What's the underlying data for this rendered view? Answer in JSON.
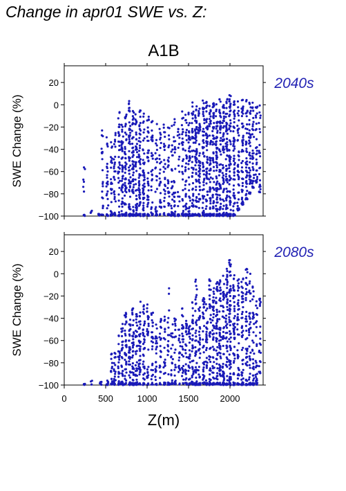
{
  "page": {
    "title": "Change in apr01 SWE vs. Z:"
  },
  "colors": {
    "points": "#1a1ab8",
    "period_label": "#2323b4",
    "axis": "#000000"
  },
  "chart_data": {
    "type": "scatter",
    "title": "A1B",
    "xlabel": "Z(m)",
    "ylabel": "SWE Change (%)",
    "xlim": [
      0,
      2400
    ],
    "ylim": [
      -100,
      35
    ],
    "x_ticks": [
      0,
      500,
      1000,
      1500,
      2000
    ],
    "x_tick_labels": [
      "0",
      "500",
      "1000",
      "1500",
      "2000"
    ],
    "y_ticks": [
      20,
      0,
      -20,
      -40,
      -60,
      -80,
      -100
    ],
    "y_tick_labels": [
      "20",
      "0",
      "−20",
      "−40",
      "−60",
      "−80",
      "−100"
    ],
    "grid": false,
    "panels": [
      {
        "period": "2040s",
        "clusters": [
          {
            "x": 240,
            "ymin": -100,
            "ymax": -56,
            "n": 10
          },
          {
            "x": 330,
            "ymin": -100,
            "ymax": -95,
            "n": 4
          },
          {
            "x": 420,
            "ymin": -100,
            "ymax": -98,
            "n": 8
          },
          {
            "x": 460,
            "ymin": -100,
            "ymax": -22,
            "n": 22
          },
          {
            "x": 520,
            "ymin": -100,
            "ymax": -25,
            "n": 28
          },
          {
            "x": 570,
            "ymin": -100,
            "ymax": -30,
            "n": 30
          },
          {
            "x": 610,
            "ymin": -100,
            "ymax": -22,
            "n": 30
          },
          {
            "x": 660,
            "ymin": -100,
            "ymax": -5,
            "n": 40
          },
          {
            "x": 700,
            "ymin": -100,
            "ymax": -10,
            "n": 50
          },
          {
            "x": 740,
            "ymin": -100,
            "ymax": -8,
            "n": 55
          },
          {
            "x": 790,
            "ymin": -100,
            "ymax": 5,
            "n": 70
          },
          {
            "x": 830,
            "ymin": -100,
            "ymax": -5,
            "n": 60
          },
          {
            "x": 870,
            "ymin": -100,
            "ymax": -8,
            "n": 55
          },
          {
            "x": 910,
            "ymin": -100,
            "ymax": -5,
            "n": 60
          },
          {
            "x": 960,
            "ymin": -100,
            "ymax": -5,
            "n": 60
          },
          {
            "x": 1010,
            "ymin": -100,
            "ymax": -5,
            "n": 45
          },
          {
            "x": 1060,
            "ymin": -100,
            "ymax": -8,
            "n": 35
          },
          {
            "x": 1110,
            "ymin": -100,
            "ymax": -12,
            "n": 30
          },
          {
            "x": 1160,
            "ymin": -100,
            "ymax": -15,
            "n": 30
          },
          {
            "x": 1210,
            "ymin": -100,
            "ymax": -15,
            "n": 30
          },
          {
            "x": 1260,
            "ymin": -100,
            "ymax": -15,
            "n": 30
          },
          {
            "x": 1300,
            "ymin": -100,
            "ymax": -18,
            "n": 28
          },
          {
            "x": 1330,
            "ymin": -100,
            "ymax": -10,
            "n": 35
          },
          {
            "x": 1380,
            "ymin": -100,
            "ymax": -20,
            "n": 25
          },
          {
            "x": 1430,
            "ymin": -100,
            "ymax": -5,
            "n": 35
          },
          {
            "x": 1470,
            "ymin": -100,
            "ymax": -5,
            "n": 40
          },
          {
            "x": 1510,
            "ymin": -100,
            "ymax": -5,
            "n": 45
          },
          {
            "x": 1550,
            "ymin": -100,
            "ymax": 3,
            "n": 55
          },
          {
            "x": 1590,
            "ymin": -100,
            "ymax": 5,
            "n": 65
          },
          {
            "x": 1630,
            "ymin": -100,
            "ymax": 2,
            "n": 55
          },
          {
            "x": 1680,
            "ymin": -100,
            "ymax": 5,
            "n": 60
          },
          {
            "x": 1720,
            "ymin": -100,
            "ymax": 5,
            "n": 70
          },
          {
            "x": 1760,
            "ymin": -100,
            "ymax": 3,
            "n": 65
          },
          {
            "x": 1800,
            "ymin": -100,
            "ymax": 2,
            "n": 65
          },
          {
            "x": 1840,
            "ymin": -100,
            "ymax": 3,
            "n": 70
          },
          {
            "x": 1880,
            "ymin": -100,
            "ymax": 5,
            "n": 70
          },
          {
            "x": 1920,
            "ymin": -100,
            "ymax": 5,
            "n": 65
          },
          {
            "x": 1960,
            "ymin": -100,
            "ymax": 8,
            "n": 70
          },
          {
            "x": 2000,
            "ymin": -100,
            "ymax": 9,
            "n": 80
          },
          {
            "x": 2050,
            "ymin": -100,
            "ymax": 5,
            "n": 65
          },
          {
            "x": 2100,
            "ymin": -95,
            "ymax": 5,
            "n": 55
          },
          {
            "x": 2150,
            "ymin": -90,
            "ymax": 5,
            "n": 55
          },
          {
            "x": 2200,
            "ymin": -85,
            "ymax": 5,
            "n": 50
          },
          {
            "x": 2240,
            "ymin": -80,
            "ymax": 3,
            "n": 45
          },
          {
            "x": 2280,
            "ymin": -75,
            "ymax": 2,
            "n": 35
          },
          {
            "x": 2320,
            "ymin": -70,
            "ymax": 2,
            "n": 30
          },
          {
            "x": 2360,
            "ymin": -80,
            "ymax": 0,
            "n": 25
          }
        ]
      },
      {
        "period": "2080s",
        "clusters": [
          {
            "x": 240,
            "ymin": -100,
            "ymax": -99,
            "n": 6
          },
          {
            "x": 330,
            "ymin": -100,
            "ymax": -96,
            "n": 4
          },
          {
            "x": 440,
            "ymin": -100,
            "ymax": -97,
            "n": 8
          },
          {
            "x": 520,
            "ymin": -100,
            "ymax": -96,
            "n": 12
          },
          {
            "x": 570,
            "ymin": -100,
            "ymax": -68,
            "n": 18
          },
          {
            "x": 610,
            "ymin": -100,
            "ymax": -70,
            "n": 20
          },
          {
            "x": 660,
            "ymin": -100,
            "ymax": -55,
            "n": 28
          },
          {
            "x": 700,
            "ymin": -100,
            "ymax": -45,
            "n": 35
          },
          {
            "x": 740,
            "ymin": -100,
            "ymax": -35,
            "n": 40
          },
          {
            "x": 790,
            "ymin": -100,
            "ymax": -40,
            "n": 45
          },
          {
            "x": 830,
            "ymin": -100,
            "ymax": -30,
            "n": 45
          },
          {
            "x": 870,
            "ymin": -100,
            "ymax": -35,
            "n": 40
          },
          {
            "x": 910,
            "ymin": -100,
            "ymax": -25,
            "n": 45
          },
          {
            "x": 960,
            "ymin": -100,
            "ymax": -28,
            "n": 40
          },
          {
            "x": 1010,
            "ymin": -100,
            "ymax": -25,
            "n": 35
          },
          {
            "x": 1060,
            "ymin": -100,
            "ymax": -35,
            "n": 28
          },
          {
            "x": 1110,
            "ymin": -100,
            "ymax": -40,
            "n": 25
          },
          {
            "x": 1160,
            "ymin": -100,
            "ymax": -40,
            "n": 25
          },
          {
            "x": 1210,
            "ymin": -100,
            "ymax": -30,
            "n": 25
          },
          {
            "x": 1260,
            "ymin": -100,
            "ymax": -12,
            "n": 22
          },
          {
            "x": 1300,
            "ymin": -100,
            "ymax": -45,
            "n": 22
          },
          {
            "x": 1340,
            "ymin": -100,
            "ymax": -35,
            "n": 25
          },
          {
            "x": 1390,
            "ymin": -100,
            "ymax": -50,
            "n": 20
          },
          {
            "x": 1430,
            "ymin": -100,
            "ymax": -30,
            "n": 30
          },
          {
            "x": 1470,
            "ymin": -100,
            "ymax": -40,
            "n": 30
          },
          {
            "x": 1510,
            "ymin": -100,
            "ymax": -45,
            "n": 30
          },
          {
            "x": 1550,
            "ymin": -100,
            "ymax": -25,
            "n": 40
          },
          {
            "x": 1590,
            "ymin": -100,
            "ymax": -5,
            "n": 50
          },
          {
            "x": 1630,
            "ymin": -100,
            "ymax": -25,
            "n": 40
          },
          {
            "x": 1680,
            "ymin": -100,
            "ymax": -15,
            "n": 40
          },
          {
            "x": 1720,
            "ymin": -100,
            "ymax": -25,
            "n": 40
          },
          {
            "x": 1760,
            "ymin": -100,
            "ymax": -5,
            "n": 50
          },
          {
            "x": 1800,
            "ymin": -100,
            "ymax": -10,
            "n": 50
          },
          {
            "x": 1840,
            "ymin": -100,
            "ymax": -5,
            "n": 55
          },
          {
            "x": 1880,
            "ymin": -100,
            "ymax": -5,
            "n": 55
          },
          {
            "x": 1920,
            "ymin": -100,
            "ymax": 0,
            "n": 55
          },
          {
            "x": 1960,
            "ymin": -100,
            "ymax": 5,
            "n": 60
          },
          {
            "x": 2000,
            "ymin": -100,
            "ymax": 14,
            "n": 75
          },
          {
            "x": 2050,
            "ymin": -100,
            "ymax": 0,
            "n": 55
          },
          {
            "x": 2100,
            "ymin": -100,
            "ymax": -5,
            "n": 50
          },
          {
            "x": 2150,
            "ymin": -100,
            "ymax": 0,
            "n": 50
          },
          {
            "x": 2200,
            "ymin": -100,
            "ymax": 5,
            "n": 50
          },
          {
            "x": 2240,
            "ymin": -100,
            "ymax": 3,
            "n": 45
          },
          {
            "x": 2280,
            "ymin": -100,
            "ymax": -10,
            "n": 35
          },
          {
            "x": 2320,
            "ymin": -100,
            "ymax": -20,
            "n": 30
          },
          {
            "x": 2360,
            "ymin": -90,
            "ymax": -20,
            "n": 22
          }
        ]
      }
    ]
  }
}
